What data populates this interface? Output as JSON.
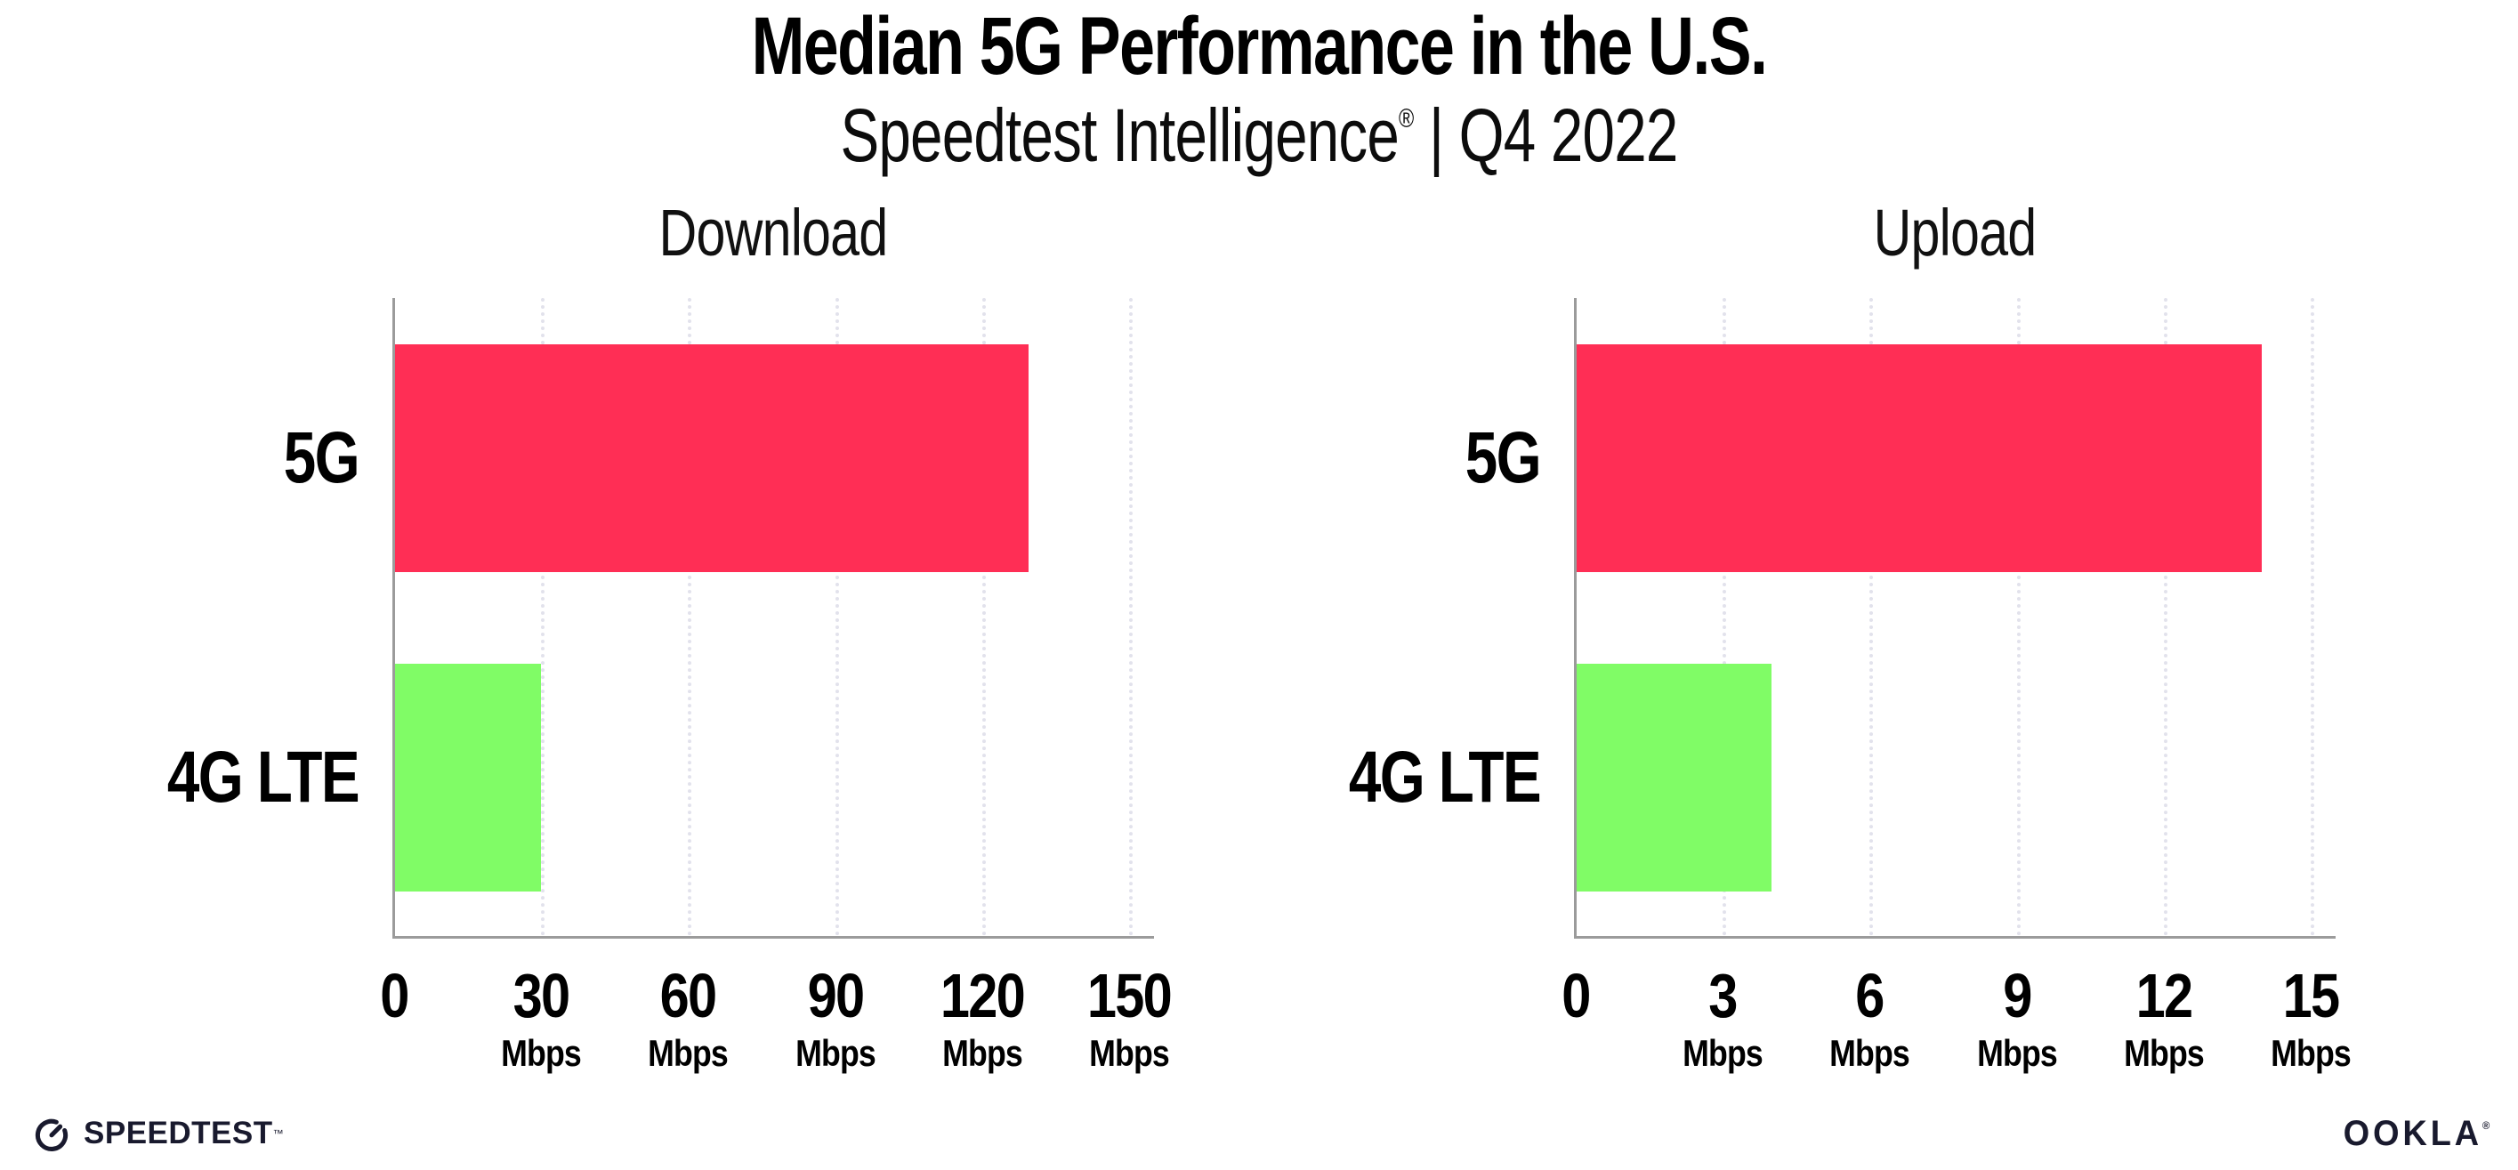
{
  "header": {
    "title": "Median 5G Performance in the U.S.",
    "subtitle_brand": "Speedtest Intelligence",
    "subtitle_reg": "®",
    "subtitle_rest": " | Q4 2022"
  },
  "chart_data": [
    {
      "type": "bar",
      "orientation": "horizontal",
      "title": "Download",
      "categories": [
        "5G",
        "4G LTE"
      ],
      "values": [
        129.5,
        30
      ],
      "unit": "Mbps",
      "xlim": [
        0,
        150
      ],
      "xticks": [
        0,
        30,
        60,
        90,
        120,
        150
      ],
      "grid": "dotted vertical gridlines",
      "legend": "none",
      "bar_colors": [
        "#FF2E55",
        "#80FC66"
      ],
      "ticks": [
        {
          "v": "0",
          "u": ""
        },
        {
          "v": "30",
          "u": "Mbps"
        },
        {
          "v": "60",
          "u": "Mbps"
        },
        {
          "v": "90",
          "u": "Mbps"
        },
        {
          "v": "120",
          "u": "Mbps"
        },
        {
          "v": "150",
          "u": "Mbps"
        }
      ]
    },
    {
      "type": "bar",
      "orientation": "horizontal",
      "title": "Upload",
      "categories": [
        "5G",
        "4G LTE"
      ],
      "values": [
        14,
        4
      ],
      "unit": "Mbps",
      "xlim": [
        0,
        15
      ],
      "xticks": [
        0,
        3,
        6,
        9,
        12,
        15
      ],
      "grid": "dotted vertical gridlines",
      "legend": "none",
      "bar_colors": [
        "#FF2E55",
        "#80FC66"
      ],
      "ticks": [
        {
          "v": "0",
          "u": ""
        },
        {
          "v": "3",
          "u": "Mbps"
        },
        {
          "v": "6",
          "u": "Mbps"
        },
        {
          "v": "9",
          "u": "Mbps"
        },
        {
          "v": "12",
          "u": "Mbps"
        },
        {
          "v": "15",
          "u": "Mbps"
        }
      ]
    }
  ],
  "colors": {
    "bar_5g": "#FF2E55",
    "bar_4g": "#80FC66",
    "gridline": "#E2E2EC",
    "axis": "#9B9B9B",
    "logo_dark": "#191A2E"
  },
  "footer": {
    "speedtest_label": "SPEEDTEST",
    "speedtest_tm": "™",
    "ookla_label": "OOKLA",
    "ookla_reg": "®"
  }
}
